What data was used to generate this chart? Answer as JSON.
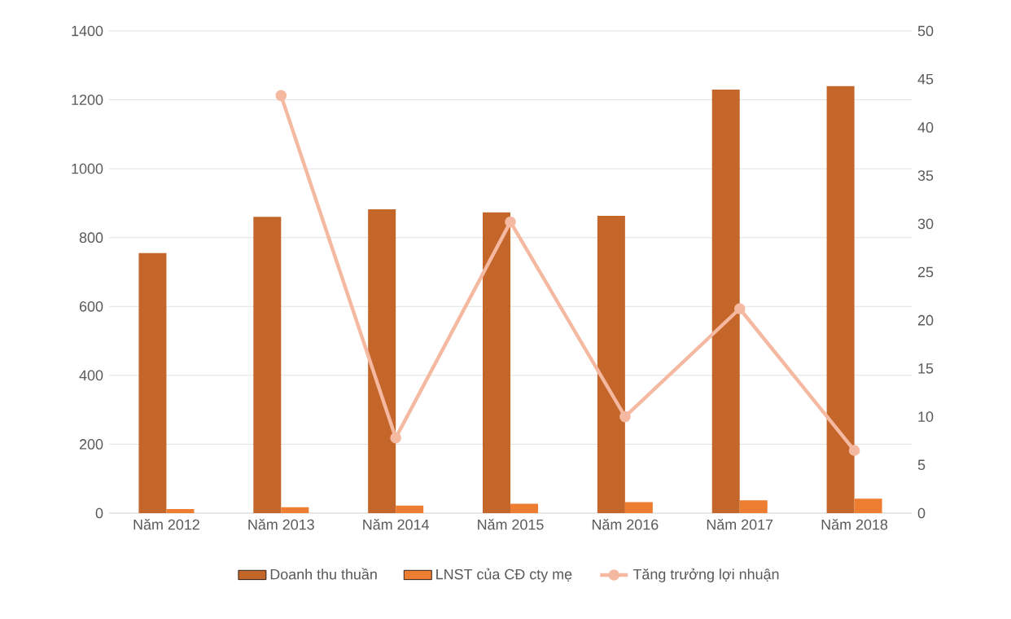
{
  "chart_data": {
    "type": "bar",
    "categories": [
      "Năm 2012",
      "Năm 2013",
      "Năm 2014",
      "Năm 2015",
      "Năm 2016",
      "Năm 2017",
      "Năm 2018"
    ],
    "series": [
      {
        "name": "Doanh thu thuần",
        "color": "#c4652a",
        "values": [
          755,
          860,
          882,
          873,
          863,
          1230,
          1240
        ]
      },
      {
        "name": "LNST của CĐ cty  mẹ",
        "color": "#ed7d31",
        "values": [
          12,
          17,
          22,
          27,
          32,
          37,
          42
        ]
      },
      {
        "name": "Tăng trưởng lợi nhuận",
        "type": "line",
        "axis": "y2",
        "color": "#f4b9a0",
        "marker": "circle",
        "values": [
          null,
          43.3,
          7.8,
          30.2,
          10,
          21.2,
          6.5
        ]
      }
    ],
    "ylim": [
      0,
      1400
    ],
    "yticks": [
      0,
      200,
      400,
      600,
      800,
      1000,
      1200,
      1400
    ],
    "y2lim": [
      0,
      50
    ],
    "y2ticks": [
      0,
      5,
      10,
      15,
      20,
      25,
      30,
      35,
      40,
      45,
      50
    ],
    "grid": "y",
    "legend": "bottom"
  }
}
